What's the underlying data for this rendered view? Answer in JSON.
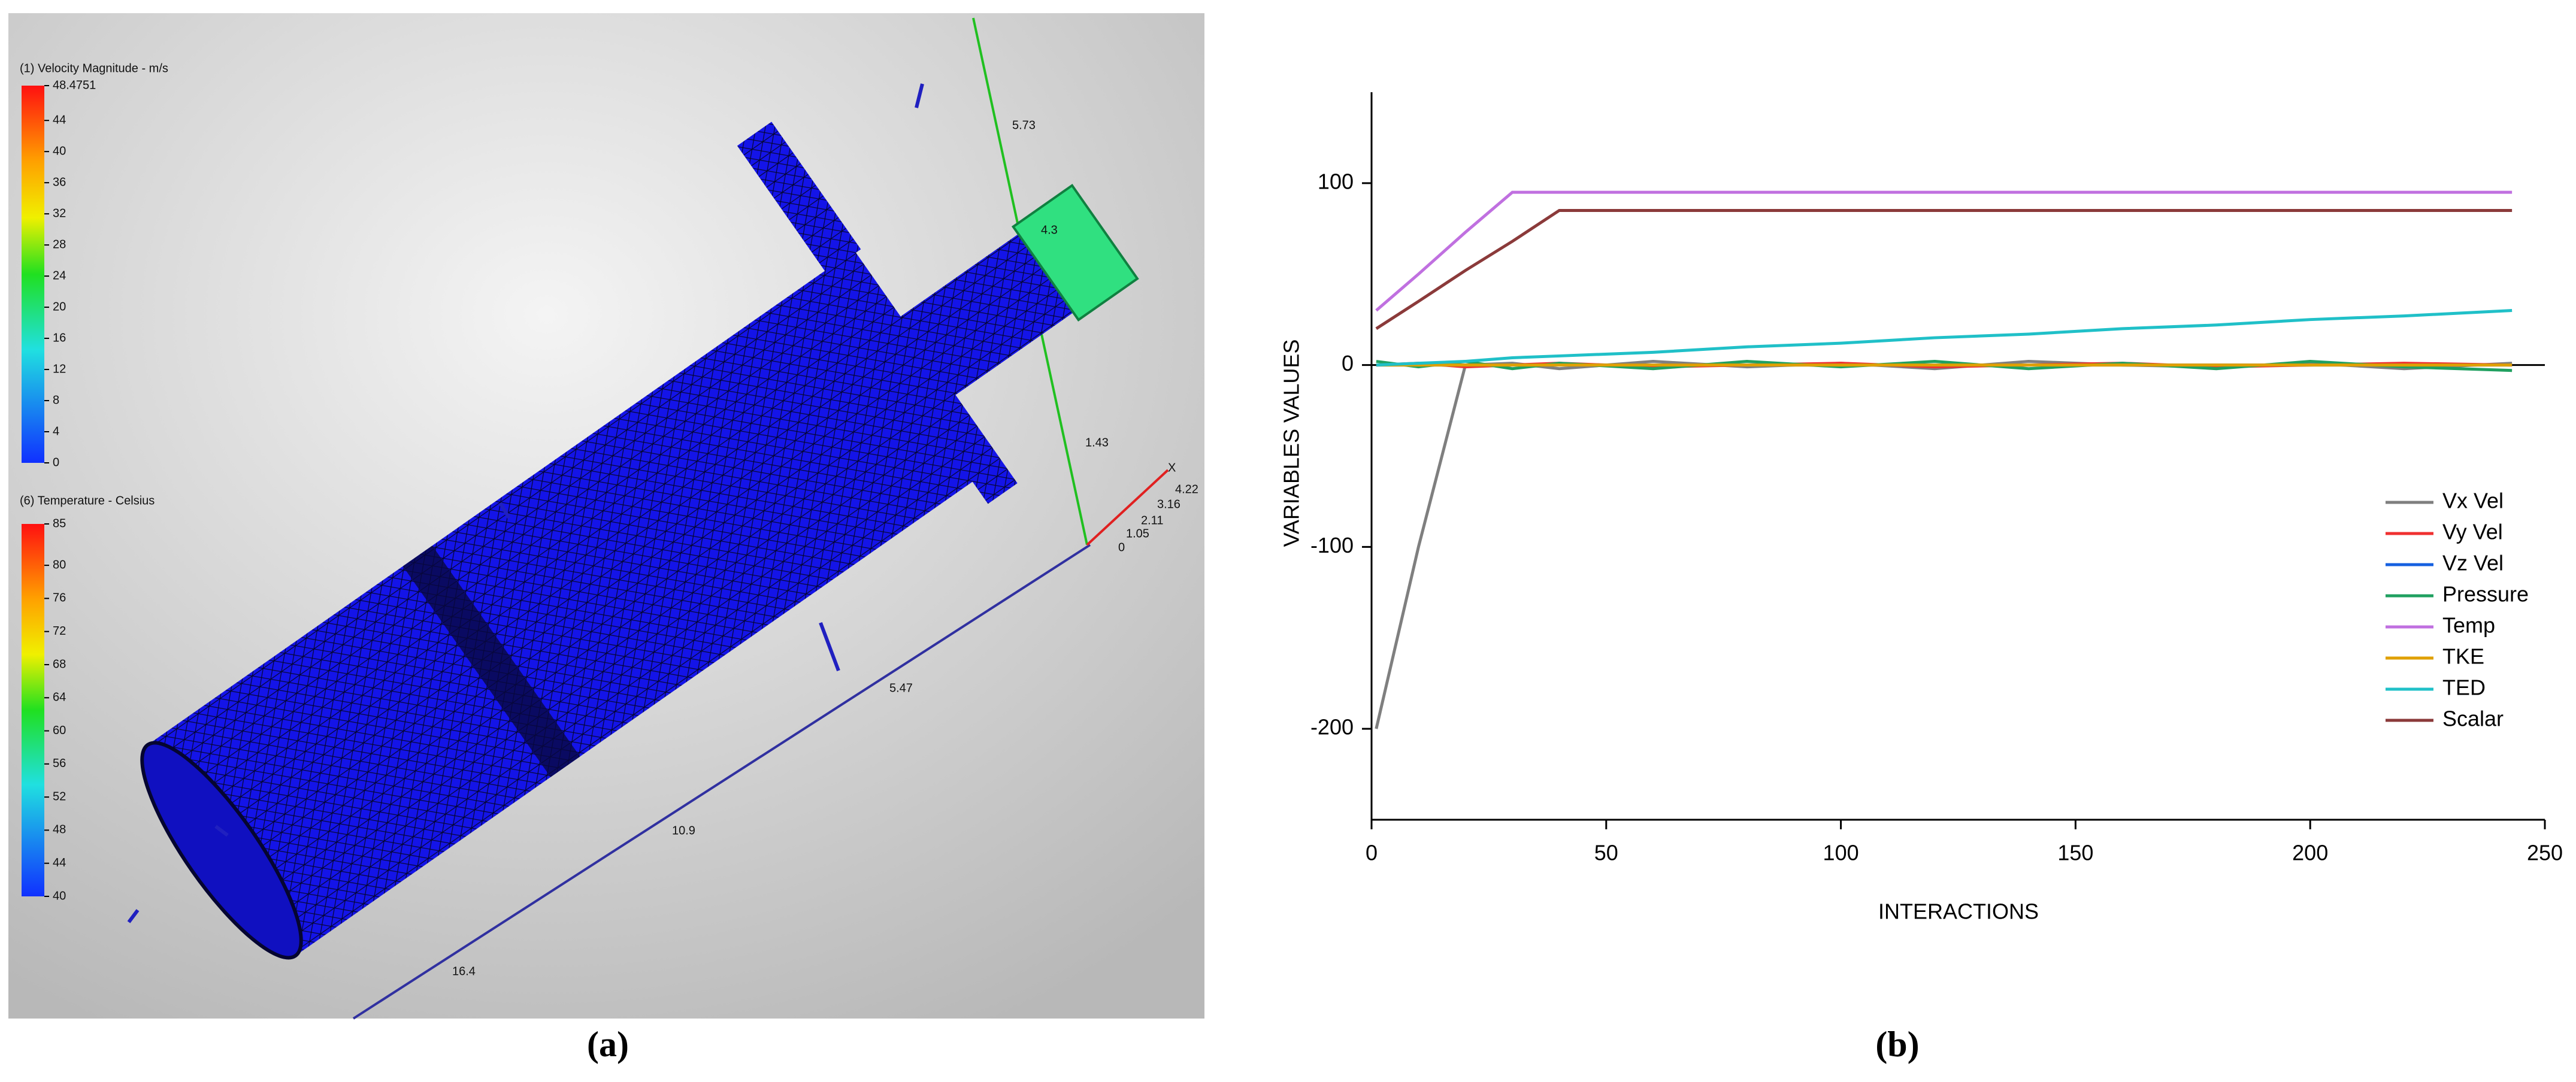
{
  "panel_a": {
    "caption": "(a)",
    "colorbars": [
      {
        "title": "(1) Velocity Magnitude - m/s",
        "ticks": [
          48.4751,
          44,
          40,
          36,
          32,
          28,
          24,
          20,
          16,
          12,
          8,
          4,
          0
        ]
      },
      {
        "title": "(6) Temperature - Celsius",
        "ticks": [
          85,
          80,
          76,
          72,
          68,
          64,
          60,
          56,
          52,
          48,
          44,
          40
        ]
      }
    ],
    "axis_labels": [
      "5.73",
      "4.3",
      "1.43",
      "X",
      "4.22",
      "3.16",
      "2.11",
      "1.05",
      "0",
      "5.47",
      "10.9",
      "16.4"
    ]
  },
  "chart_data": {
    "type": "line",
    "caption": "(b)",
    "xlabel": "INTERACTIONS",
    "ylabel": "VARIABLES VALUES",
    "x": [
      1,
      10,
      20,
      30,
      40,
      60,
      80,
      100,
      120,
      140,
      160,
      180,
      200,
      220,
      243
    ],
    "series": [
      {
        "name": "Vx Vel",
        "color": "#7f7f7f",
        "values": [
          -200,
          -100,
          0,
          1,
          -2,
          2,
          -1,
          1,
          -2,
          2,
          0,
          -1,
          1,
          -2,
          1
        ]
      },
      {
        "name": "Vy Vel",
        "color": "#f03030",
        "values": [
          0,
          1,
          -1,
          0,
          1,
          -1,
          0,
          1,
          -1,
          0,
          1,
          -1,
          0,
          1,
          0
        ]
      },
      {
        "name": "Vz Vel",
        "color": "#1560e0",
        "values": [
          0,
          0,
          0,
          0,
          0,
          0,
          0,
          0,
          0,
          0,
          0,
          0,
          0,
          0,
          0
        ]
      },
      {
        "name": "Pressure",
        "color": "#20a060",
        "values": [
          2,
          -1,
          2,
          -2,
          1,
          -2,
          2,
          -1,
          2,
          -2,
          1,
          -2,
          2,
          -1,
          -3
        ]
      },
      {
        "name": "Temp",
        "color": "#c070e0",
        "values": [
          30,
          50,
          73,
          95,
          95,
          95,
          95,
          95,
          95,
          95,
          95,
          95,
          95,
          95,
          95
        ]
      },
      {
        "name": "TKE",
        "color": "#e0a000",
        "values": [
          0,
          0,
          0,
          0,
          0,
          0,
          0,
          0,
          0,
          0,
          0,
          0,
          0,
          0,
          0
        ]
      },
      {
        "name": "TED",
        "color": "#20c0c8",
        "values": [
          0,
          1,
          2,
          4,
          5,
          7,
          10,
          12,
          15,
          17,
          20,
          22,
          25,
          27,
          30
        ]
      },
      {
        "name": "Scalar",
        "color": "#8b3a3a",
        "values": [
          20,
          35,
          52,
          68,
          85,
          85,
          85,
          85,
          85,
          85,
          85,
          85,
          85,
          85,
          85
        ]
      }
    ],
    "xlim": [
      0,
      250
    ],
    "xticks": [
      0,
      50,
      100,
      150,
      200,
      250
    ],
    "ylim": [
      -250,
      150
    ],
    "yticks": [
      -200,
      -100,
      0,
      100
    ],
    "legend": "lower right"
  }
}
